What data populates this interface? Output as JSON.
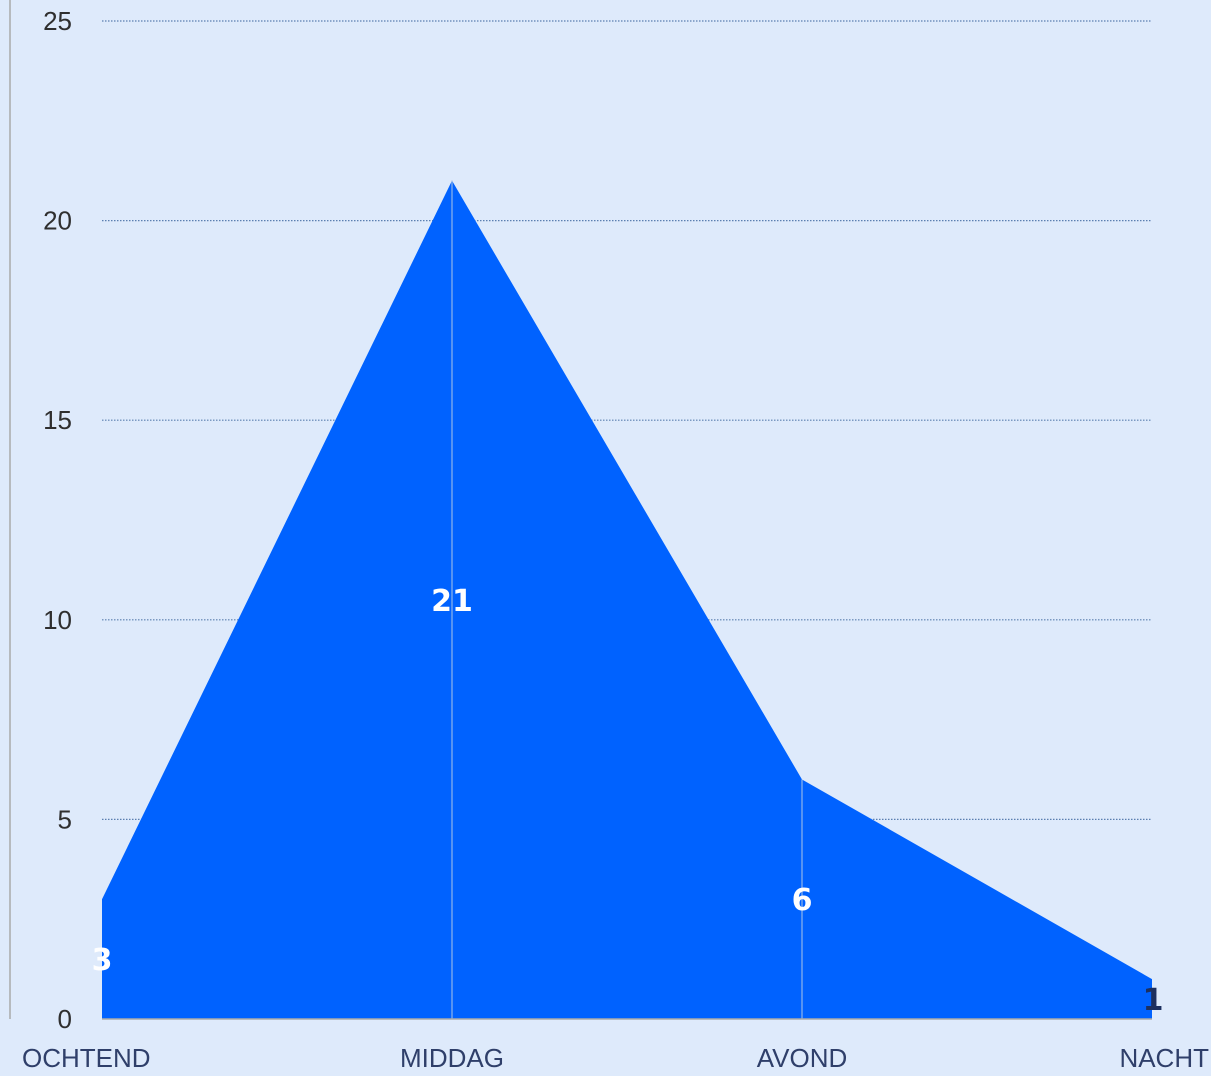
{
  "chart_data": {
    "type": "area",
    "categories": [
      "OCHTEND",
      "MIDDAG",
      "AVOND",
      "NACHT"
    ],
    "series": [
      {
        "values": [
          3,
          21,
          6,
          1
        ]
      }
    ],
    "ylim": [
      0,
      25
    ],
    "yticks": [
      0,
      5,
      10,
      15,
      20,
      25
    ],
    "grid": true,
    "title": "",
    "xlabel": "",
    "ylabel": "",
    "colors": {
      "background": "#deeafb",
      "area": "#0062ff",
      "gridline": "#5b7fb0",
      "drop_line": "#8fb4e8",
      "axis": "#a9a9a9",
      "label_light": "#ffffff",
      "label_dark": "#1d2f5e"
    }
  }
}
